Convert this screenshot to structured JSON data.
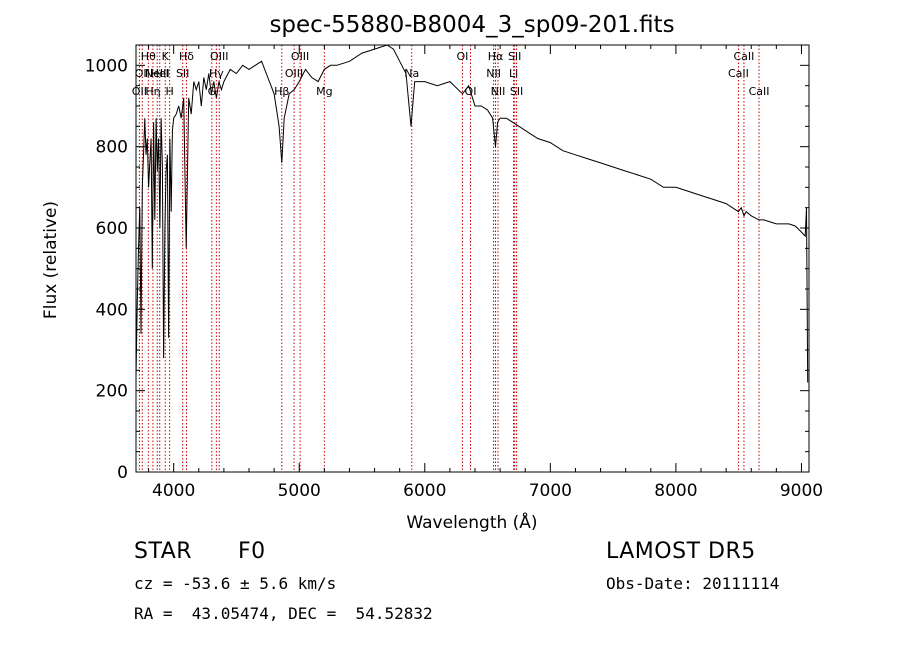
{
  "chart_data": {
    "type": "line",
    "title": "spec-55880-B8004_3_sp09-201.fits",
    "xlabel": "Wavelength (Å)",
    "ylabel": "Flux (relative)",
    "xlim": [
      3700,
      9060
    ],
    "ylim": [
      0,
      1050
    ],
    "xticks": [
      4000,
      5000,
      6000,
      7000,
      8000,
      9000
    ],
    "yticks": [
      0,
      200,
      400,
      600,
      800,
      1000
    ],
    "grid": false,
    "series": [
      {
        "x": [
          3700,
          3710,
          3720,
          3730,
          3740,
          3750,
          3760,
          3770,
          3780,
          3790,
          3800,
          3810,
          3820,
          3830,
          3840,
          3850,
          3860,
          3870,
          3880,
          3890,
          3900,
          3910,
          3920,
          3930,
          3940,
          3950,
          3960,
          3970,
          3980,
          3990,
          4000,
          4020,
          4040,
          4060,
          4080,
          4100,
          4120,
          4140,
          4160,
          4180,
          4200,
          4220,
          4240,
          4260,
          4280,
          4300,
          4320,
          4340,
          4360,
          4380,
          4400,
          4450,
          4500,
          4550,
          4600,
          4650,
          4700,
          4750,
          4800,
          4840,
          4861,
          4880,
          4920,
          4960,
          5000,
          5050,
          5100,
          5150,
          5200,
          5250,
          5300,
          5400,
          5500,
          5600,
          5700,
          5750,
          5800,
          5850,
          5890,
          5920,
          5950,
          6000,
          6100,
          6200,
          6300,
          6350,
          6400,
          6450,
          6500,
          6540,
          6563,
          6580,
          6600,
          6650,
          6700,
          6800,
          6900,
          7000,
          7100,
          7200,
          7300,
          7400,
          7500,
          7600,
          7700,
          7800,
          7900,
          8000,
          8100,
          8200,
          8300,
          8400,
          8450,
          8498,
          8520,
          8542,
          8560,
          8600,
          8662,
          8700,
          8750,
          8800,
          8850,
          8900,
          8950,
          9000,
          9030,
          9040,
          9050
        ],
        "y": [
          230,
          420,
          550,
          650,
          340,
          700,
          780,
          870,
          780,
          820,
          700,
          760,
          820,
          500,
          860,
          620,
          870,
          740,
          820,
          600,
          870,
          750,
          280,
          600,
          740,
          780,
          330,
          820,
          640,
          840,
          870,
          880,
          900,
          870,
          920,
          550,
          920,
          880,
          960,
          940,
          960,
          900,
          970,
          940,
          980,
          930,
          960,
          920,
          960,
          940,
          960,
          990,
          980,
          1000,
          990,
          1000,
          1010,
          970,
          930,
          850,
          760,
          870,
          930,
          940,
          960,
          990,
          970,
          960,
          990,
          1000,
          1000,
          1010,
          1030,
          1040,
          1050,
          1040,
          1010,
          980,
          850,
          960,
          960,
          960,
          950,
          960,
          930,
          950,
          900,
          900,
          890,
          870,
          800,
          860,
          870,
          870,
          860,
          840,
          820,
          810,
          790,
          780,
          770,
          760,
          750,
          740,
          730,
          720,
          700,
          700,
          690,
          680,
          670,
          660,
          650,
          640,
          650,
          630,
          640,
          630,
          620,
          620,
          615,
          610,
          610,
          610,
          605,
          590,
          580,
          650,
          220
        ],
        "color": "#000000"
      }
    ],
    "line_ids": [
      {
        "wavelength": 3727,
        "label": "OII",
        "row": 2
      },
      {
        "wavelength": 3750,
        "label": "OII",
        "row": 1
      },
      {
        "wavelength": 3798,
        "label": "Hθ",
        "row": 0
      },
      {
        "wavelength": 3835,
        "label": "Hη",
        "row": 2
      },
      {
        "wavelength": 3869,
        "label": "NeIII",
        "row": 1
      },
      {
        "wavelength": 3889,
        "label": "HeI",
        "row": 1
      },
      {
        "wavelength": 3933,
        "label": "K",
        "row": 0
      },
      {
        "wavelength": 3968,
        "label": "H",
        "row": 2
      },
      {
        "wavelength": 4072,
        "label": "SII",
        "row": 1
      },
      {
        "wavelength": 4102,
        "label": "Hδ",
        "row": 0
      },
      {
        "wavelength": 4304,
        "label": "G",
        "row": 2
      },
      {
        "wavelength": 4340,
        "label": "Hγ",
        "row": 1
      },
      {
        "wavelength": 4363,
        "label": "OIII",
        "row": 0
      },
      {
        "wavelength": 4861,
        "label": "Hβ",
        "row": 2
      },
      {
        "wavelength": 4959,
        "label": "OIII",
        "row": 1
      },
      {
        "wavelength": 5007,
        "label": "OIII",
        "row": 0
      },
      {
        "wavelength": 5200,
        "label": "Mg",
        "row": 2
      },
      {
        "wavelength": 5896,
        "label": "Na",
        "row": 1
      },
      {
        "wavelength": 6300,
        "label": "OI",
        "row": 0
      },
      {
        "wavelength": 6364,
        "label": "OI",
        "row": 2
      },
      {
        "wavelength": 6548,
        "label": "NII",
        "row": 1
      },
      {
        "wavelength": 6563,
        "label": "Hα",
        "row": 0
      },
      {
        "wavelength": 6583,
        "label": "NII",
        "row": 2
      },
      {
        "wavelength": 6707,
        "label": "Li",
        "row": 1
      },
      {
        "wavelength": 6716,
        "label": "SII",
        "row": 0
      },
      {
        "wavelength": 6731,
        "label": "SII",
        "row": 2
      },
      {
        "wavelength": 8498,
        "label": "CaII",
        "row": 1
      },
      {
        "wavelength": 8542,
        "label": "CaII",
        "row": 0
      },
      {
        "wavelength": 8662,
        "label": "CaII",
        "row": 2
      }
    ],
    "line_color": "#cc0000"
  },
  "info": {
    "object_class": "STAR",
    "subclass": "F0",
    "cz": "cz = -53.6 ± 5.6 km/s",
    "coords": "RA =  43.05474, DEC =  54.52832",
    "survey": "LAMOST DR5",
    "obs_date": "Obs-Date: 20111114"
  }
}
